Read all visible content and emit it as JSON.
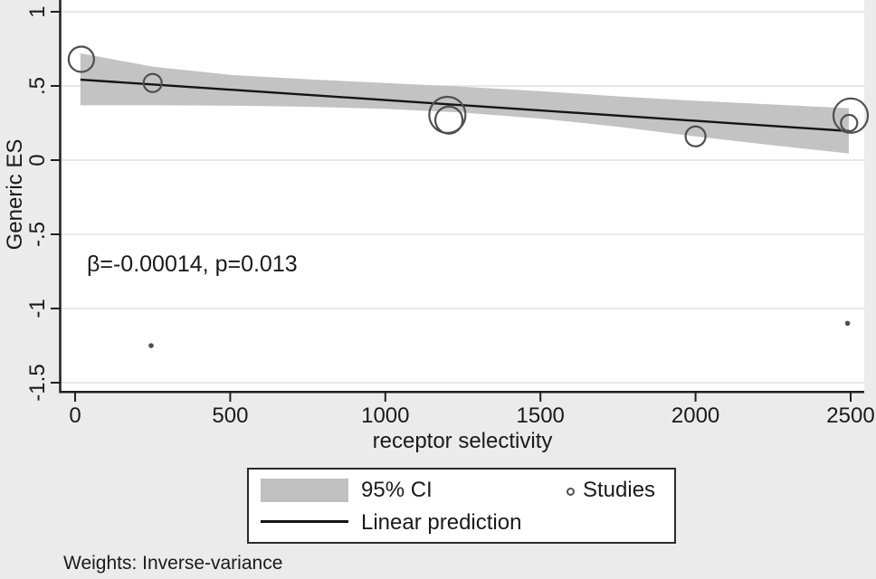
{
  "page": {
    "background": "#ebebeb",
    "note": "Weights: Inverse-variance"
  },
  "chart_data": {
    "type": "scatter",
    "subtype": "meta-regression-bubble-plot",
    "title": "",
    "xlabel": "receptor selectivity",
    "ylabel": "Generic ES",
    "annotation": "β=-0.00014, p=0.013",
    "xlim": [
      -47,
      2543
    ],
    "ylim": [
      -1.56,
      1.08
    ],
    "grid": "horizontal-only",
    "x_ticks": {
      "values": [
        0,
        500,
        1000,
        1500,
        2000,
        2500
      ],
      "labels": [
        "0",
        "500",
        "1000",
        "1500",
        "2000",
        "2500"
      ]
    },
    "y_ticks": {
      "values": [
        1,
        0.5,
        0,
        -0.5,
        -1,
        -1.5
      ],
      "labels": [
        "1",
        ".5",
        "0",
        "-.5",
        "-1",
        "-1.5"
      ]
    },
    "legend": {
      "position": "bottom-center",
      "ci_label": "95% CI",
      "line_label": "Linear prediction",
      "studies_label": "Studies"
    },
    "regression": {
      "intercept": 0.545,
      "slope": -0.00014,
      "p_value": 0.013,
      "x_start": 17,
      "x_end": 2494
    },
    "ci_band": {
      "x": [
        17,
        250,
        500,
        750,
        1000,
        1250,
        1500,
        1750,
        2000,
        2250,
        2494
      ],
      "top": [
        0.72,
        0.63,
        0.575,
        0.545,
        0.52,
        0.495,
        0.465,
        0.43,
        0.4,
        0.375,
        0.35
      ],
      "bottom": [
        0.37,
        0.37,
        0.367,
        0.36,
        0.345,
        0.32,
        0.28,
        0.225,
        0.16,
        0.1,
        0.045
      ]
    },
    "studies": [
      {
        "x": 20,
        "es": 0.68,
        "r": 14
      },
      {
        "x": 250,
        "es": 0.52,
        "r": 10
      },
      {
        "x": 1200,
        "es": 0.305,
        "r": 20
      },
      {
        "x": 1205,
        "es": 0.27,
        "r": 15
      },
      {
        "x": 2000,
        "es": 0.16,
        "r": 11
      },
      {
        "x": 2500,
        "es": 0.3,
        "r": 19
      },
      {
        "x": 2495,
        "es": 0.25,
        "r": 9
      },
      {
        "x": 245,
        "es": -1.25,
        "r": 2.3
      },
      {
        "x": 2490,
        "es": -1.1,
        "r": 2.3
      }
    ],
    "colors": {
      "band": "#c3c3c3",
      "line": "#141414",
      "marker": "#4f4f4f",
      "grid": "#e8e8e8",
      "axis": "#1f1f1f",
      "plot_bg": "#ffffff",
      "page_bg": "#ebebeb"
    }
  }
}
